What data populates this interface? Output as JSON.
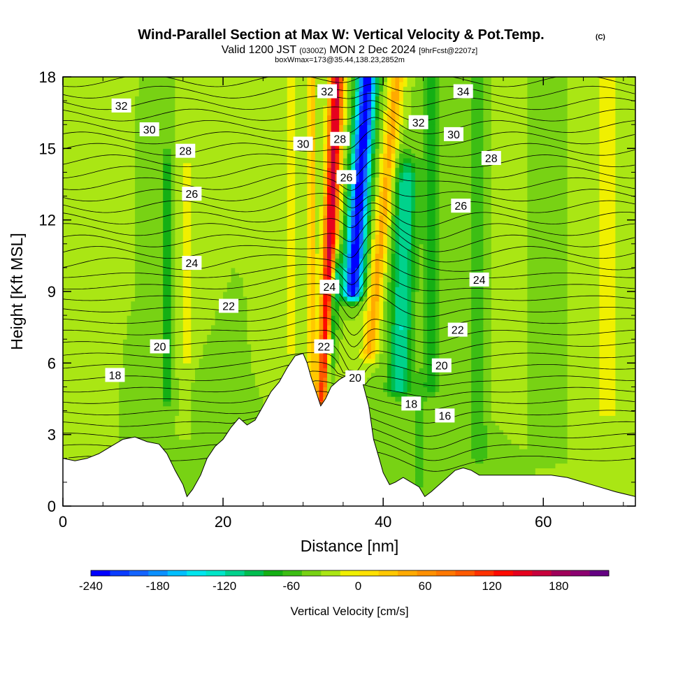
{
  "titles": {
    "main": "Wind-Parallel Section at Max W: Vertical Velocity & Pot.Temp.",
    "copyright": "(C)",
    "valid_pre": "Valid 1200 JST",
    "valid_z": "(0300Z)",
    "valid_date": "MON 2 Dec 2024",
    "valid_fcst": "[9hrFcst@2207z]",
    "box": "boxWmax=173@35.44,138.23,2852m"
  },
  "chart_data": {
    "type": "heatmap",
    "xlabel": "Distance [nm]",
    "ylabel": "Height [Kft MSL]",
    "xlim": [
      0,
      71.5
    ],
    "ylim": [
      0,
      18
    ],
    "x_ticks": [
      "0",
      "20",
      "40",
      "60"
    ],
    "x_tick_values": [
      0,
      20,
      40,
      60
    ],
    "y_ticks": [
      "0",
      "3",
      "6",
      "9",
      "12",
      "15",
      "18"
    ],
    "y_tick_values": [
      0,
      3,
      6,
      9,
      12,
      15,
      18
    ],
    "colorbar": {
      "title": "Vertical Velocity [cm/s]",
      "tick_labels": [
        "-240",
        "-180",
        "-120",
        "-60",
        "0",
        "60",
        "120",
        "180"
      ],
      "tick_values": [
        -240,
        -180,
        -120,
        -60,
        0,
        60,
        120,
        180
      ],
      "range": [
        -240,
        225
      ],
      "step": 20,
      "colors": [
        "#0000ff",
        "#0a3cff",
        "#1464ff",
        "#0a90ff",
        "#00bfff",
        "#00e6ee",
        "#00e6c8",
        "#00d28c",
        "#00be50",
        "#14af14",
        "#3cbe14",
        "#78d214",
        "#aae614",
        "#f0f000",
        "#ffe100",
        "#ffc800",
        "#ffaa00",
        "#ff9000",
        "#ff7800",
        "#ff5a00",
        "#ff3200",
        "#ff0a00",
        "#e6001e",
        "#c8003c",
        "#a0005a",
        "#8c0070",
        "#640082"
      ]
    },
    "terrain_profile": [
      [
        0,
        2.0
      ],
      [
        1.5,
        1.9
      ],
      [
        3,
        2.0
      ],
      [
        4.5,
        2.2
      ],
      [
        6,
        2.5
      ],
      [
        7.5,
        2.8
      ],
      [
        9,
        2.9
      ],
      [
        10.5,
        2.7
      ],
      [
        12,
        2.6
      ],
      [
        13,
        2.2
      ],
      [
        14,
        1.5
      ],
      [
        15,
        0.9
      ],
      [
        15.5,
        0.4
      ],
      [
        16.2,
        0.7
      ],
      [
        17.2,
        1.3
      ],
      [
        18,
        2.0
      ],
      [
        19,
        2.5
      ],
      [
        20,
        2.8
      ],
      [
        21,
        3.3
      ],
      [
        22,
        3.7
      ],
      [
        23,
        3.4
      ],
      [
        24,
        3.6
      ],
      [
        25,
        4.2
      ],
      [
        26,
        4.8
      ],
      [
        27,
        5.2
      ],
      [
        28,
        5.8
      ],
      [
        29,
        6.3
      ],
      [
        30,
        6.4
      ],
      [
        30.5,
        6.0
      ],
      [
        31,
        5.4
      ],
      [
        31.8,
        4.6
      ],
      [
        32.2,
        4.2
      ],
      [
        32.8,
        4.5
      ],
      [
        33.5,
        5.0
      ],
      [
        34.5,
        5.3
      ],
      [
        35.5,
        5.5
      ],
      [
        36.5,
        5.6
      ],
      [
        37.5,
        5.1
      ],
      [
        38.2,
        4.2
      ],
      [
        38.8,
        2.8
      ],
      [
        39.5,
        2.0
      ],
      [
        40,
        1.4
      ],
      [
        40.8,
        0.9
      ],
      [
        41.5,
        1.0
      ],
      [
        42.5,
        1.2
      ],
      [
        43.5,
        1.0
      ],
      [
        44.5,
        0.8
      ],
      [
        45.2,
        0.4
      ],
      [
        46,
        0.6
      ],
      [
        47,
        0.9
      ],
      [
        48,
        1.2
      ],
      [
        49,
        1.5
      ],
      [
        50,
        1.6
      ],
      [
        51,
        1.5
      ],
      [
        52,
        1.3
      ],
      [
        53,
        1.3
      ],
      [
        55,
        1.3
      ],
      [
        57,
        1.3
      ],
      [
        59,
        1.3
      ],
      [
        61,
        1.3
      ],
      [
        63,
        1.2
      ],
      [
        65,
        1.0
      ],
      [
        67,
        0.8
      ],
      [
        69,
        0.6
      ],
      [
        71.5,
        0.4
      ]
    ],
    "w_features": [
      {
        "x": 32.6,
        "y0": 4.5,
        "y1": 18,
        "slope": 0.012,
        "w": 230,
        "sx": 0.85
      },
      {
        "x": 31.1,
        "y0": 4.5,
        "y1": 18,
        "slope": 0.0,
        "w": 70,
        "sx": 0.5
      },
      {
        "x": 36.2,
        "y0": 9.0,
        "y1": 18,
        "slope": 0.02,
        "w": -240,
        "sx": 1.2
      },
      {
        "x": 33.0,
        "y0": 4.5,
        "y1": 9.5,
        "slope": 0.02,
        "w": -150,
        "sx": 0.6
      },
      {
        "x": 38.3,
        "y0": 6.5,
        "y1": 18,
        "slope": 0.03,
        "w": 90,
        "sx": 0.9
      },
      {
        "x": 42.0,
        "y0": 5.0,
        "y1": 13.5,
        "slope": 0.01,
        "w": -100,
        "sx": 1.4
      },
      {
        "x": 46.0,
        "y0": 5.0,
        "y1": 18,
        "slope": 0.0,
        "w": -50,
        "sx": 1.0
      },
      {
        "x": 13.0,
        "y0": 4.5,
        "y1": 14.0,
        "slope": 0.0,
        "w": -50,
        "sx": 0.7
      },
      {
        "x": 15.5,
        "y0": 3.0,
        "y1": 14.0,
        "slope": 0.0,
        "w": 25,
        "sx": 1.0
      },
      {
        "x": 28.5,
        "y0": 6.5,
        "y1": 18,
        "slope": 0.0,
        "w": 25,
        "sx": 1.0
      },
      {
        "x": 52.0,
        "y0": 2.0,
        "y1": 18,
        "slope": 0.0,
        "w": -30,
        "sx": 1.2
      },
      {
        "x": 55.0,
        "y0": 4.0,
        "y1": 18,
        "slope": 0.0,
        "w": 20,
        "sx": 1.5
      },
      {
        "x": 60.0,
        "y0": 4.0,
        "y1": 18,
        "slope": 0.0,
        "w": -20,
        "sx": 1.2
      },
      {
        "x": 68.0,
        "y0": 4.0,
        "y1": 18,
        "slope": 0.0,
        "w": 25,
        "sx": 2.0
      },
      {
        "x": 44.5,
        "y0": 1.0,
        "y1": 4.5,
        "slope": 0.0,
        "w": -25,
        "sx": 1.0
      },
      {
        "x": 16.0,
        "y0": 0.5,
        "y1": 4.5,
        "slope": 0.0,
        "w": -20,
        "sx": 1.5
      }
    ],
    "theta_labels": [
      {
        "text": "32",
        "x": 7.3,
        "y": 16.8
      },
      {
        "text": "30",
        "x": 10.8,
        "y": 15.8
      },
      {
        "text": "28",
        "x": 15.3,
        "y": 14.9
      },
      {
        "text": "26",
        "x": 16.1,
        "y": 13.1
      },
      {
        "text": "24",
        "x": 16.1,
        "y": 10.2
      },
      {
        "text": "22",
        "x": 20.7,
        "y": 8.4
      },
      {
        "text": "20",
        "x": 12.1,
        "y": 6.7
      },
      {
        "text": "18",
        "x": 6.5,
        "y": 5.5
      },
      {
        "text": "32",
        "x": 33.0,
        "y": 17.4
      },
      {
        "text": "30",
        "x": 30.0,
        "y": 15.2
      },
      {
        "text": "28",
        "x": 34.6,
        "y": 15.4
      },
      {
        "text": "26",
        "x": 35.4,
        "y": 13.8
      },
      {
        "text": "24",
        "x": 33.3,
        "y": 9.2
      },
      {
        "text": "22",
        "x": 32.6,
        "y": 6.7
      },
      {
        "text": "20",
        "x": 36.5,
        "y": 5.4
      },
      {
        "text": "18",
        "x": 43.5,
        "y": 4.3
      },
      {
        "text": "16",
        "x": 47.7,
        "y": 3.8
      },
      {
        "text": "20",
        "x": 47.3,
        "y": 5.9
      },
      {
        "text": "22",
        "x": 49.3,
        "y": 7.4
      },
      {
        "text": "24",
        "x": 52.0,
        "y": 9.5
      },
      {
        "text": "26",
        "x": 49.7,
        "y": 12.6
      },
      {
        "text": "28",
        "x": 53.5,
        "y": 14.6
      },
      {
        "text": "30",
        "x": 48.8,
        "y": 15.6
      },
      {
        "text": "32",
        "x": 44.4,
        "y": 16.1
      },
      {
        "text": "34",
        "x": 50.0,
        "y": 17.4
      }
    ],
    "grid": false
  }
}
